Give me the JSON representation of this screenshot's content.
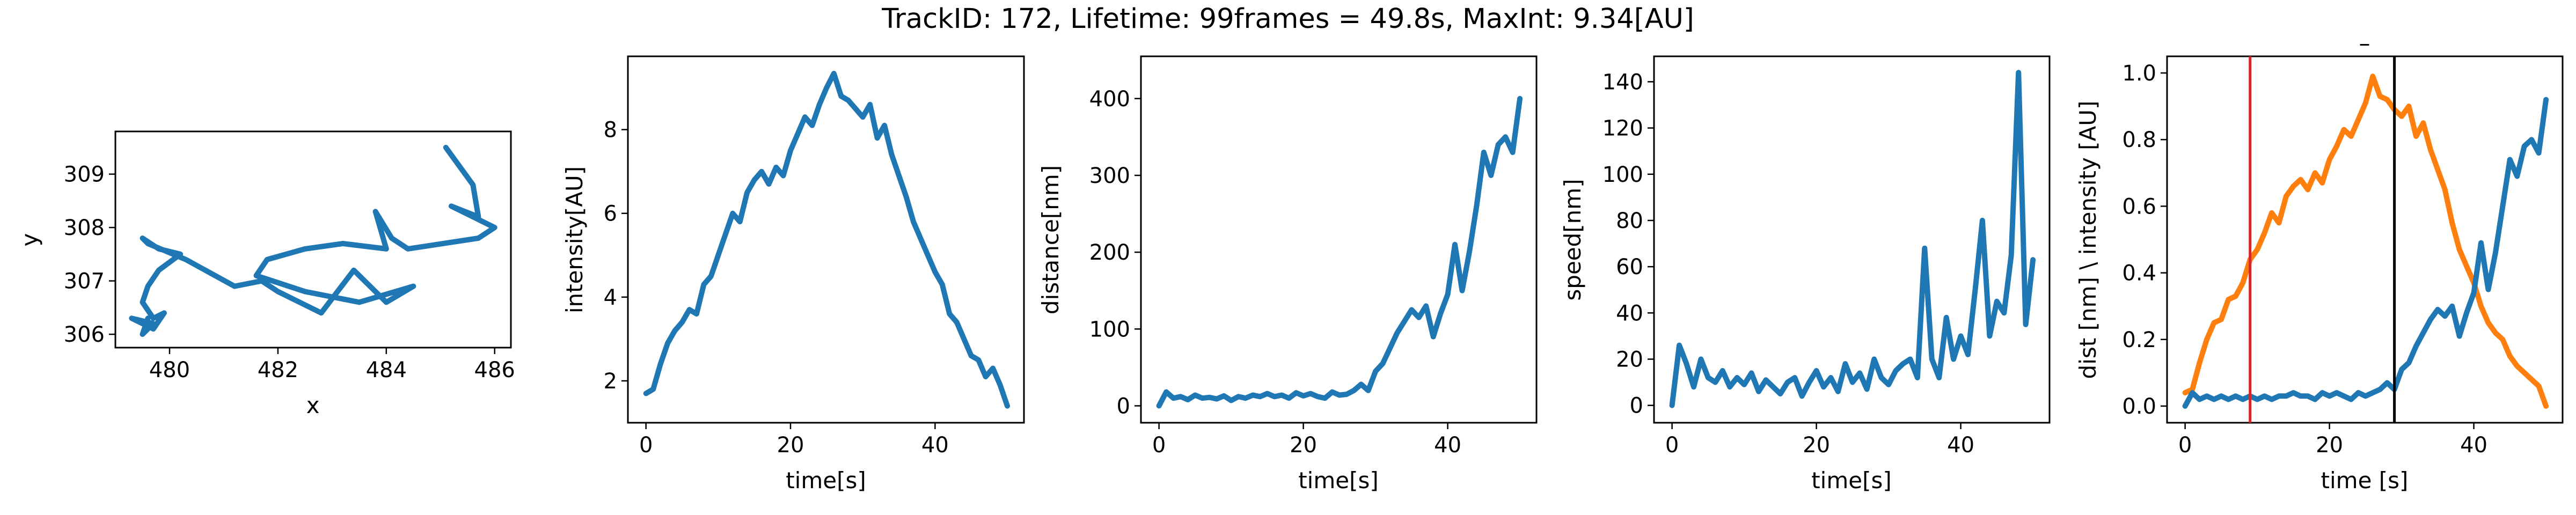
{
  "figure": {
    "title": "TrackID: 172, Lifetime: 99frames = 49.8s, MaxInt: 9.34[AU]"
  },
  "colors": {
    "blue": "#1f77b4",
    "orange": "#ff7f0e",
    "red": "#d62728",
    "black": "#000000"
  },
  "chart_data": [
    {
      "id": "xy",
      "type": "line",
      "title": "",
      "xlabel": "x",
      "ylabel": "y",
      "xlim": [
        479.0,
        486.3
      ],
      "ylim": [
        305.75,
        309.8
      ],
      "xticks": [
        480,
        482,
        484,
        486
      ],
      "yticks": [
        306,
        307,
        308,
        309
      ],
      "series": [
        {
          "color": "#1f77b4",
          "x": [
            485.1,
            485.6,
            485.7,
            485.2,
            486.0,
            485.7,
            484.4,
            484.1,
            483.8,
            484.0,
            483.2,
            482.5,
            481.8,
            481.6,
            482.5,
            483.5,
            484.5,
            484.0,
            483.4,
            482.8,
            482.0,
            481.7,
            481.2,
            480.3,
            479.6,
            479.5,
            479.8,
            480.2,
            479.8,
            479.6,
            479.5,
            479.7,
            479.9,
            479.7,
            479.5,
            479.3,
            479.7,
            479.5,
            479.6
          ],
          "y": [
            309.5,
            308.8,
            308.2,
            308.4,
            308.0,
            307.8,
            307.6,
            307.8,
            308.3,
            307.6,
            307.7,
            307.6,
            307.4,
            307.1,
            306.8,
            306.6,
            306.9,
            306.6,
            307.2,
            306.4,
            306.8,
            307.0,
            306.9,
            307.4,
            307.7,
            307.8,
            307.6,
            307.5,
            307.2,
            306.9,
            306.6,
            306.3,
            306.4,
            306.1,
            306.2,
            306.3,
            306.2,
            306.0,
            306.3
          ]
        }
      ]
    },
    {
      "id": "intensity",
      "type": "line",
      "title": "",
      "xlabel": "time[s]",
      "ylabel": "intensity[AU]",
      "xlim": [
        -2.5,
        52.3
      ],
      "ylim": [
        1.0,
        9.75
      ],
      "xticks": [
        0,
        20,
        40
      ],
      "yticks": [
        2,
        4,
        6,
        8
      ],
      "series": [
        {
          "color": "#1f77b4",
          "x": [
            0,
            1,
            2,
            3,
            4,
            5,
            6,
            7,
            8,
            9,
            10,
            11,
            12,
            13,
            14,
            15,
            16,
            17,
            18,
            19,
            20,
            21,
            22,
            23,
            24,
            25,
            26,
            27,
            28,
            29,
            30,
            31,
            32,
            33,
            34,
            35,
            36,
            37,
            38,
            39,
            40,
            41,
            42,
            43,
            44,
            45,
            46,
            47,
            48,
            49,
            50
          ],
          "y": [
            1.7,
            1.8,
            2.4,
            2.9,
            3.2,
            3.4,
            3.7,
            3.6,
            4.3,
            4.5,
            5.0,
            5.5,
            6.0,
            5.8,
            6.5,
            6.8,
            7.0,
            6.7,
            7.1,
            6.9,
            7.5,
            7.9,
            8.3,
            8.1,
            8.6,
            9.0,
            9.34,
            8.8,
            8.7,
            8.5,
            8.3,
            8.6,
            7.8,
            8.1,
            7.4,
            6.9,
            6.4,
            5.8,
            5.4,
            5.0,
            4.6,
            4.3,
            3.6,
            3.4,
            3.0,
            2.6,
            2.5,
            2.1,
            2.3,
            1.9,
            1.4
          ]
        }
      ]
    },
    {
      "id": "distance",
      "type": "line",
      "title": "",
      "xlabel": "time[s]",
      "ylabel": "distance[nm]",
      "xlim": [
        -2.5,
        52.3
      ],
      "ylim": [
        -22,
        455
      ],
      "xticks": [
        0,
        20,
        40
      ],
      "yticks": [
        0,
        100,
        200,
        300,
        400
      ],
      "series": [
        {
          "color": "#1f77b4",
          "x": [
            0,
            1,
            2,
            3,
            4,
            5,
            6,
            7,
            8,
            9,
            10,
            11,
            12,
            13,
            14,
            15,
            16,
            17,
            18,
            19,
            20,
            21,
            22,
            23,
            24,
            25,
            26,
            27,
            28,
            29,
            30,
            31,
            32,
            33,
            34,
            35,
            36,
            37,
            38,
            39,
            40,
            41,
            42,
            43,
            44,
            45,
            46,
            47,
            48,
            49,
            50
          ],
          "y": [
            0,
            18,
            10,
            12,
            8,
            14,
            10,
            11,
            9,
            13,
            7,
            12,
            10,
            14,
            12,
            16,
            12,
            14,
            10,
            17,
            13,
            16,
            12,
            10,
            18,
            14,
            15,
            20,
            28,
            20,
            45,
            55,
            75,
            95,
            110,
            125,
            115,
            130,
            90,
            120,
            145,
            210,
            150,
            200,
            260,
            330,
            300,
            340,
            350,
            330,
            400
          ]
        }
      ]
    },
    {
      "id": "speed",
      "type": "line",
      "title": "",
      "xlabel": "time[s]",
      "ylabel": "speed[nm]",
      "xlim": [
        -2.5,
        52.3
      ],
      "ylim": [
        -7.5,
        151
      ],
      "xticks": [
        0,
        20,
        40
      ],
      "yticks": [
        0,
        20,
        40,
        60,
        80,
        100,
        120,
        140
      ],
      "series": [
        {
          "color": "#1f77b4",
          "x": [
            0,
            1,
            2,
            3,
            4,
            5,
            6,
            7,
            8,
            9,
            10,
            11,
            12,
            13,
            14,
            15,
            16,
            17,
            18,
            19,
            20,
            21,
            22,
            23,
            24,
            25,
            26,
            27,
            28,
            29,
            30,
            31,
            32,
            33,
            34,
            35,
            36,
            37,
            38,
            39,
            40,
            41,
            42,
            43,
            44,
            45,
            46,
            47,
            48,
            49,
            50
          ],
          "y": [
            0,
            26,
            18,
            8,
            20,
            12,
            10,
            15,
            8,
            12,
            9,
            14,
            6,
            11,
            8,
            5,
            10,
            12,
            4,
            10,
            15,
            8,
            12,
            6,
            18,
            10,
            14,
            7,
            20,
            12,
            9,
            15,
            18,
            20,
            12,
            68,
            20,
            12,
            38,
            20,
            30,
            22,
            50,
            80,
            30,
            45,
            40,
            65,
            144,
            35,
            63
          ]
        }
      ]
    },
    {
      "id": "combined",
      "type": "line",
      "title": "–",
      "xlabel": "time [s]",
      "ylabel": "dist [nm] \\ intensity [AU]",
      "xlim": [
        -2.5,
        52.3
      ],
      "ylim": [
        -0.05,
        1.05
      ],
      "xticks": [
        0,
        20,
        40
      ],
      "yticks": [
        0.0,
        0.2,
        0.4,
        0.6,
        0.8,
        1.0
      ],
      "vlines": [
        {
          "x": 9,
          "color": "#d62728"
        },
        {
          "x": 29,
          "color": "#000000"
        }
      ],
      "series": [
        {
          "color": "#ff7f0e",
          "x": [
            0,
            1,
            2,
            3,
            4,
            5,
            6,
            7,
            8,
            9,
            10,
            11,
            12,
            13,
            14,
            15,
            16,
            17,
            18,
            19,
            20,
            21,
            22,
            23,
            24,
            25,
            26,
            27,
            28,
            29,
            30,
            31,
            32,
            33,
            34,
            35,
            36,
            37,
            38,
            39,
            40,
            41,
            42,
            43,
            44,
            45,
            46,
            47,
            48,
            49,
            50
          ],
          "y": [
            0.04,
            0.05,
            0.13,
            0.2,
            0.25,
            0.26,
            0.32,
            0.33,
            0.37,
            0.44,
            0.47,
            0.52,
            0.58,
            0.55,
            0.63,
            0.66,
            0.68,
            0.65,
            0.7,
            0.67,
            0.74,
            0.78,
            0.83,
            0.81,
            0.86,
            0.91,
            0.99,
            0.93,
            0.92,
            0.89,
            0.87,
            0.9,
            0.81,
            0.85,
            0.77,
            0.71,
            0.65,
            0.55,
            0.47,
            0.42,
            0.37,
            0.3,
            0.25,
            0.22,
            0.2,
            0.15,
            0.12,
            0.1,
            0.08,
            0.06,
            0.0
          ]
        },
        {
          "color": "#1f77b4",
          "x": [
            0,
            1,
            2,
            3,
            4,
            5,
            6,
            7,
            8,
            9,
            10,
            11,
            12,
            13,
            14,
            15,
            16,
            17,
            18,
            19,
            20,
            21,
            22,
            23,
            24,
            25,
            26,
            27,
            28,
            29,
            30,
            31,
            32,
            33,
            34,
            35,
            36,
            37,
            38,
            39,
            40,
            41,
            42,
            43,
            44,
            45,
            46,
            47,
            48,
            49,
            50
          ],
          "y": [
            0.0,
            0.04,
            0.02,
            0.03,
            0.02,
            0.03,
            0.02,
            0.03,
            0.02,
            0.03,
            0.02,
            0.03,
            0.02,
            0.03,
            0.03,
            0.04,
            0.03,
            0.03,
            0.02,
            0.04,
            0.03,
            0.04,
            0.03,
            0.02,
            0.04,
            0.03,
            0.04,
            0.05,
            0.07,
            0.05,
            0.11,
            0.13,
            0.18,
            0.22,
            0.26,
            0.29,
            0.27,
            0.3,
            0.21,
            0.28,
            0.34,
            0.49,
            0.35,
            0.46,
            0.6,
            0.74,
            0.69,
            0.78,
            0.8,
            0.76,
            0.92
          ]
        }
      ]
    }
  ]
}
